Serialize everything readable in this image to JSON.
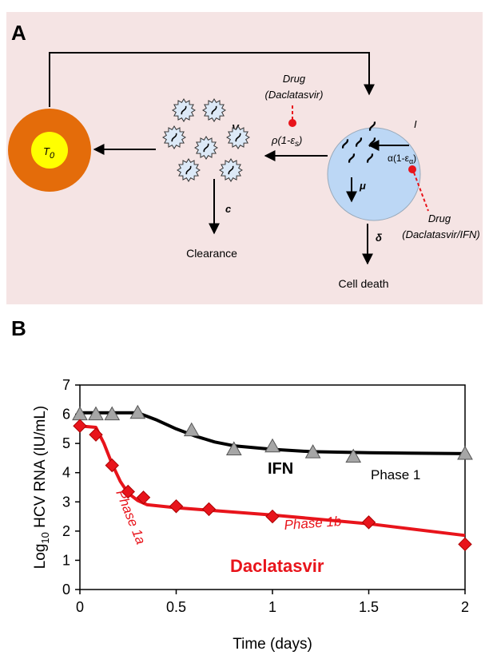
{
  "panel_a": {
    "label": "A",
    "t0": {
      "symbol": "T",
      "subscript": "0"
    },
    "v": "V",
    "i": "I",
    "drug_top": {
      "line1": "Drug",
      "line2": "(Daclatasvir)"
    },
    "rho": {
      "pre": "ρ(1-ε",
      "sub": "s",
      "post": ")"
    },
    "alpha": {
      "pre": "α(1-ε",
      "sub": "α",
      "post": ")"
    },
    "drug_right": {
      "line1": "Drug",
      "line2": "(Daclatasvir/IFN)"
    },
    "mu": "μ",
    "c": "c",
    "clearance": "Clearance",
    "delta": "δ",
    "cell_death": "Cell death"
  },
  "chart_data": {
    "type": "scatter",
    "panel_label": "B",
    "x_label": "Time (days)",
    "y_label": {
      "pre": "Log",
      "sub": "10",
      "post": " HCV RNA (IU/mL)"
    },
    "xlim": [
      0,
      2
    ],
    "ylim": [
      0,
      7
    ],
    "xticks": [
      0,
      0.5,
      1,
      1.5,
      2
    ],
    "yticks": [
      0,
      1,
      2,
      3,
      4,
      5,
      6,
      7
    ],
    "series": [
      {
        "name": "IFN",
        "color": "#a6a6a6",
        "marker": "triangle",
        "label_color": "#000000",
        "x": [
          0,
          0.083,
          0.167,
          0.3,
          0.58,
          0.8,
          1.0,
          1.21,
          1.42,
          2
        ],
        "values": [
          6.0,
          6.0,
          6.0,
          6.05,
          5.45,
          4.8,
          4.9,
          4.7,
          4.55,
          4.65
        ]
      },
      {
        "name": "Daclatasvir",
        "color": "#e8141b",
        "marker": "diamond",
        "label_color": "#e8141b",
        "x": [
          0,
          0.083,
          0.167,
          0.25,
          0.33,
          0.5,
          0.67,
          1.0,
          1.5,
          2
        ],
        "values": [
          5.6,
          5.3,
          4.25,
          3.35,
          3.15,
          2.85,
          2.75,
          2.5,
          2.3,
          1.55
        ]
      }
    ],
    "fits": [
      {
        "color": "#000000",
        "x": [
          0,
          0.3,
          0.4,
          0.5,
          0.6,
          0.7,
          0.8,
          1,
          1.2,
          1.5,
          2
        ],
        "values": [
          6.05,
          6.05,
          5.8,
          5.5,
          5.25,
          5.05,
          4.92,
          4.8,
          4.72,
          4.68,
          4.65
        ]
      },
      {
        "color": "#e8141b",
        "x": [
          0,
          0.083,
          0.125,
          0.167,
          0.21,
          0.25,
          0.3,
          0.35,
          0.5,
          1,
          1.5,
          2
        ],
        "values": [
          5.6,
          5.55,
          5.0,
          4.3,
          3.7,
          3.3,
          3.05,
          2.9,
          2.8,
          2.55,
          2.25,
          1.85
        ]
      }
    ],
    "annotations": [
      "Phase 1",
      "Phase 1a",
      "Phase 1b"
    ]
  }
}
